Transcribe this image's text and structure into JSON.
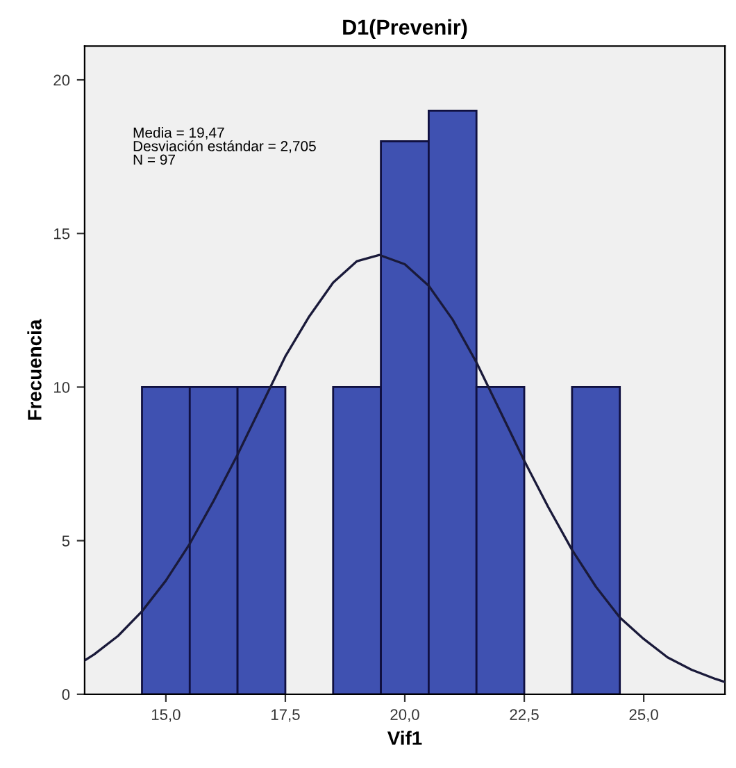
{
  "chart_data": {
    "type": "histogram",
    "title": "D1(Prevenir)",
    "xlabel": "Vif1",
    "ylabel": "Frecuencia",
    "bins": [
      14.5,
      15.5,
      16.5,
      17.5,
      18.5,
      19.5,
      20.5,
      21.5,
      22.5,
      23.5,
      24.5
    ],
    "values": [
      10,
      10,
      10,
      0,
      10,
      18,
      19,
      10,
      0,
      10
    ],
    "color": "#3f51b1",
    "series": [
      {
        "type": "line",
        "color": "#1a1a3a",
        "x": [
          13.3,
          13.5,
          14.0,
          14.5,
          15.0,
          15.5,
          16.0,
          16.5,
          17.0,
          17.5,
          18.0,
          18.5,
          19.0,
          19.47,
          20.0,
          20.5,
          21.0,
          21.5,
          22.0,
          22.5,
          23.0,
          23.5,
          24.0,
          24.5,
          25.0,
          25.5,
          26.0,
          26.5,
          26.7
        ],
        "values": [
          1.1,
          1.3,
          1.9,
          2.7,
          3.7,
          4.9,
          6.3,
          7.8,
          9.4,
          11.0,
          12.3,
          13.4,
          14.1,
          14.3,
          14.0,
          13.3,
          12.2,
          10.8,
          9.2,
          7.6,
          6.1,
          4.7,
          3.5,
          2.5,
          1.8,
          1.2,
          0.8,
          0.5,
          0.4
        ]
      }
    ],
    "annotations": [
      "Media = 19,47\nDesviación estándar = 2,705\nN = 97"
    ],
    "xlim": [
      13.3,
      26.7
    ],
    "ylim": [
      0,
      21.1
    ],
    "xticks": [
      {
        "value": 15,
        "label": "15,0"
      },
      {
        "value": 17.5,
        "label": "17,5"
      },
      {
        "value": 20,
        "label": "20,0"
      },
      {
        "value": 22.5,
        "label": "22,5"
      },
      {
        "value": 25,
        "label": "25,0"
      }
    ],
    "yticks": [
      0,
      5,
      10,
      15,
      20
    ],
    "grid": false
  }
}
